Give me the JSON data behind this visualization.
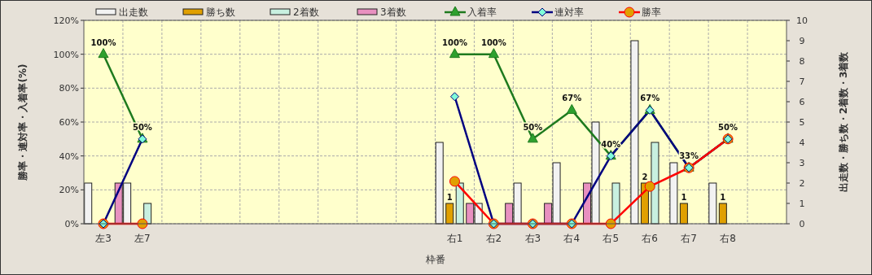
{
  "chart_data": {
    "type": "line",
    "xlabel": "枠番",
    "ylabel": "勝率・連対率・入着率(%)",
    "y2label": "出走数・勝ち数・2着数・3着数",
    "categories": [
      "左3",
      "左7",
      null,
      null,
      null,
      null,
      null,
      null,
      null,
      "右1",
      "右2",
      "右3",
      "右4",
      "右5",
      "右6",
      "右7",
      "右8",
      null
    ],
    "ylim": [
      0,
      120
    ],
    "yticks": [
      {
        "value": 0,
        "label": "0%"
      },
      {
        "value": 20,
        "label": "20%"
      },
      {
        "value": 40,
        "label": "40%"
      },
      {
        "value": 60,
        "label": "60%"
      },
      {
        "value": 80,
        "label": "80%"
      },
      {
        "value": 100,
        "label": "100%"
      },
      {
        "value": 120,
        "label": "120%"
      }
    ],
    "y2lim": [
      0,
      10
    ],
    "y2ticks": [
      0,
      1,
      2,
      3,
      4,
      5,
      6,
      7,
      8,
      9,
      10
    ],
    "grid": true,
    "legend": "top",
    "series": [
      {
        "name": "出走数",
        "type": "bar",
        "axis": "y2",
        "color": "#f2f2f2",
        "values": [
          2,
          2,
          null,
          null,
          null,
          null,
          null,
          null,
          null,
          4,
          1,
          2,
          3,
          5,
          9,
          3,
          2,
          null
        ]
      },
      {
        "name": "勝ち数",
        "type": "bar",
        "axis": "y2",
        "color": "#e0a000",
        "values": [
          0,
          0,
          null,
          null,
          null,
          null,
          null,
          null,
          null,
          1,
          0,
          0,
          0,
          0,
          2,
          1,
          1,
          null
        ],
        "value_labels": [
          null,
          null,
          null,
          null,
          null,
          null,
          null,
          null,
          null,
          "1",
          null,
          null,
          null,
          null,
          "2",
          "1",
          "1",
          null
        ]
      },
      {
        "name": "2着数",
        "type": "bar",
        "axis": "y2",
        "color": "#c8f0e0",
        "values": [
          0,
          1,
          null,
          null,
          null,
          null,
          null,
          null,
          null,
          2,
          0,
          0,
          0,
          2,
          4,
          0,
          0,
          null
        ]
      },
      {
        "name": "3着数",
        "type": "bar",
        "axis": "y2",
        "color": "#e890c0",
        "values": [
          2,
          0,
          null,
          null,
          null,
          null,
          null,
          null,
          null,
          1,
          1,
          1,
          2,
          0,
          0,
          0,
          0,
          null
        ]
      },
      {
        "name": "入着率",
        "axis": "y",
        "color": "#1e7a1e",
        "marker": "triangle",
        "values": [
          100,
          50,
          null,
          null,
          null,
          null,
          null,
          null,
          null,
          100,
          100,
          50,
          67,
          40,
          67,
          33,
          50,
          null
        ],
        "value_labels": [
          "100%",
          "50%",
          null,
          null,
          null,
          null,
          null,
          null,
          null,
          "100%",
          "100%",
          "50%",
          "67%",
          "40%",
          "67%",
          "33%",
          "50%",
          null
        ]
      },
      {
        "name": "連対率",
        "axis": "y",
        "color": "#000080",
        "marker": "diamond",
        "values": [
          0,
          50,
          null,
          null,
          null,
          null,
          null,
          null,
          null,
          75,
          0,
          0,
          0,
          40,
          67,
          33,
          50,
          null
        ]
      },
      {
        "name": "勝率",
        "axis": "y",
        "color": "#ff0000",
        "marker": "circle",
        "values": [
          0,
          0,
          null,
          null,
          null,
          null,
          null,
          null,
          null,
          25,
          0,
          0,
          0,
          0,
          22,
          33,
          50,
          null
        ]
      }
    ]
  }
}
